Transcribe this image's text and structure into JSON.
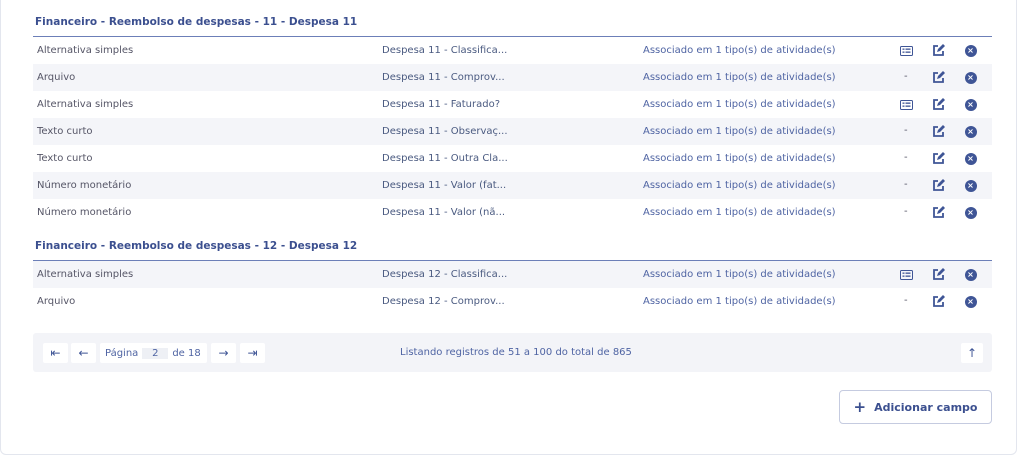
{
  "groups": [
    {
      "title": "Financeiro - Reembolso de despesas - 11 - Despesa 11",
      "rows": [
        {
          "type": "Alternativa simples",
          "name": "Despesa 11 - Classifica...",
          "assoc": "Associado em 1 tipo(s) de atividade(s)",
          "options": "list-icon"
        },
        {
          "type": "Arquivo",
          "name": "Despesa 11 - Comprov...",
          "assoc": "Associado em 1 tipo(s) de atividade(s)",
          "options": "-"
        },
        {
          "type": "Alternativa simples",
          "name": "Despesa 11 - Faturado?",
          "assoc": "Associado em 1 tipo(s) de atividade(s)",
          "options": "list-icon"
        },
        {
          "type": "Texto curto",
          "name": "Despesa 11 - Observaç...",
          "assoc": "Associado em 1 tipo(s) de atividade(s)",
          "options": "-"
        },
        {
          "type": "Texto curto",
          "name": "Despesa 11 - Outra Cla...",
          "assoc": "Associado em 1 tipo(s) de atividade(s)",
          "options": "-"
        },
        {
          "type": "Número monetário",
          "name": "Despesa 11 - Valor (fat...",
          "assoc": "Associado em 1 tipo(s) de atividade(s)",
          "options": "-"
        },
        {
          "type": "Número monetário",
          "name": "Despesa 11 - Valor (nã...",
          "assoc": "Associado em 1 tipo(s) de atividade(s)",
          "options": "-"
        }
      ]
    },
    {
      "title": "Financeiro - Reembolso de despesas - 12 - Despesa 12",
      "rows": [
        {
          "type": "Alternativa simples",
          "name": "Despesa 12 - Classifica...",
          "assoc": "Associado em 1 tipo(s) de atividade(s)",
          "options": "list-icon"
        },
        {
          "type": "Arquivo",
          "name": "Despesa 12 - Comprov...",
          "assoc": "Associado em 1 tipo(s) de atividade(s)",
          "options": "-"
        }
      ]
    }
  ],
  "pagination": {
    "page_label": "Página",
    "page": "2",
    "of_label": "de 18",
    "info": "Listando registros de 51 a 100 do total de 865"
  },
  "add_button": {
    "label": "Adicionar campo"
  },
  "colors": {
    "accent": "#3f5596",
    "title": "#3b4f8f",
    "row_alt": "#f4f5f9"
  }
}
